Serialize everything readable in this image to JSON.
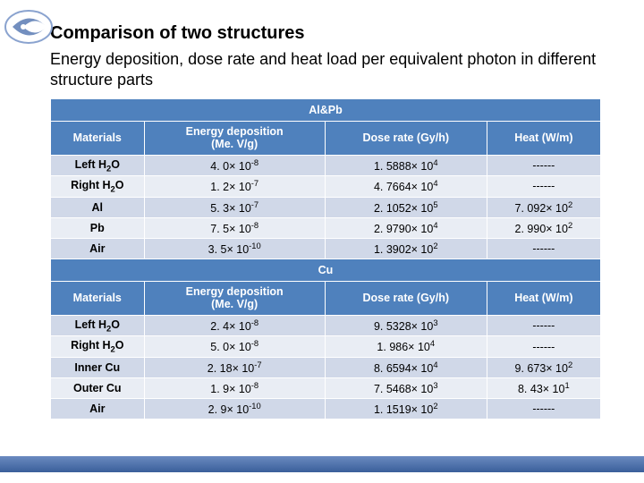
{
  "title": "Comparison of two structures",
  "title_fontsize": 20,
  "subtitle": "Energy deposition, dose rate and heat load per equivalent photon in different structure parts",
  "subtitle_fontsize": 18,
  "table": {
    "header_bg": "#4f81bd",
    "header_fg": "#ffffff",
    "band_light": "#d0d8e8",
    "band_dark": "#e9edf4",
    "border_color": "#ffffff",
    "sections": [
      {
        "label": "Al&Pb",
        "columns": [
          "Materials",
          "Energy deposition (Me. V/g)",
          "Dose rate (Gy/h)",
          "Heat (W/m)"
        ],
        "rows": [
          {
            "mat_html": "Left H<sub>2</sub>O",
            "e": "4. 0× 10<sup>-8</sup>",
            "d": "1. 5888× 10<sup>4</sup>",
            "h": "------"
          },
          {
            "mat_html": "Right H<sub>2</sub>O",
            "e": "1. 2× 10<sup>-7</sup>",
            "d": "4. 7664× 10<sup>4</sup>",
            "h": "------"
          },
          {
            "mat_html": "Al",
            "e": "5. 3× 10<sup>-7</sup>",
            "d": "2. 1052× 10<sup>5</sup>",
            "h": "7. 092× 10<sup>2</sup>"
          },
          {
            "mat_html": "Pb",
            "e": "7. 5× 10<sup>-8</sup>",
            "d": "2. 9790× 10<sup>4</sup>",
            "h": "2. 990× 10<sup>2</sup>"
          },
          {
            "mat_html": "Air",
            "e": "3. 5× 10<sup>-10</sup>",
            "d": "1. 3902× 10<sup>2</sup>",
            "h": "------"
          }
        ]
      },
      {
        "label": "Cu",
        "columns": [
          "Materials",
          "Energy deposition (Me. V/g)",
          "Dose rate (Gy/h)",
          "Heat (W/m)"
        ],
        "rows": [
          {
            "mat_html": "Left H<sub>2</sub>O",
            "e": "2. 4× 10<sup>-8</sup>",
            "d": "9. 5328× 10<sup>3</sup>",
            "h": "------"
          },
          {
            "mat_html": "Right H<sub>2</sub>O",
            "e": "5. 0× 10<sup>-8</sup>",
            "d": "1. 986× 10<sup>4</sup>",
            "h": "------"
          },
          {
            "mat_html": "Inner Cu",
            "e": "2. 18× 10<sup>-7</sup>",
            "d": "8. 6594× 10<sup>4</sup>",
            "h": "9. 673× 10<sup>2</sup>"
          },
          {
            "mat_html": "Outer Cu",
            "e": "1. 9× 10<sup>-8</sup>",
            "d": "7. 5468× 10<sup>3</sup>",
            "h": "8. 43× 10<sup>1</sup>"
          },
          {
            "mat_html": "Air",
            "e": "2. 9× 10<sup>-10</sup>",
            "d": "1. 1519× 10<sup>2</sup>",
            "h": "------"
          }
        ]
      }
    ]
  },
  "footer_gradient": [
    "#6a8ac0",
    "#3a5f9a"
  ],
  "logo_colors": {
    "swirl": "#5b7bb4",
    "ring": "#8aa3cf"
  }
}
